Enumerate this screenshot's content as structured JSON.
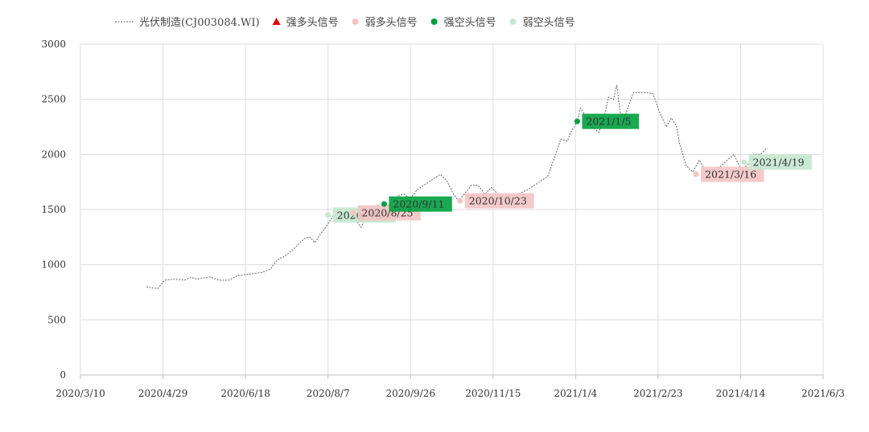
{
  "chart_data": {
    "type": "line",
    "title": "",
    "xlabel": "",
    "ylabel": "",
    "ylim": [
      0,
      3000
    ],
    "yticks": [
      0,
      500,
      1000,
      1500,
      2000,
      2500,
      3000
    ],
    "xlim": [
      "2020-03-10",
      "2021-06-03"
    ],
    "xticks": [
      "2020-03-10",
      "2020-04-29",
      "2020-06-18",
      "2020-08-07",
      "2020-09-26",
      "2020-11-15",
      "2021-01-04",
      "2021-02-23",
      "2021-04-14",
      "2021-06-03"
    ],
    "xtick_labels": [
      "2020/3/10",
      "2020/4/29",
      "2020/6/18",
      "2020/8/7",
      "2020/9/26",
      "2020/11/15",
      "2021/1/4",
      "2021/2/23",
      "2021/4/14",
      "2021/6/3"
    ],
    "grid": true,
    "legend_position": "top",
    "legend": [
      {
        "key": "line",
        "label": "光伏制造(CJ003084.WI)",
        "marker": "dash-line",
        "color": "#666666"
      },
      {
        "key": "strong_long",
        "label": "强多头信号",
        "marker": "triangle",
        "color": "#e60000"
      },
      {
        "key": "weak_long",
        "label": "弱多头信号",
        "marker": "circle",
        "color": "#f4c4c4"
      },
      {
        "key": "strong_short",
        "label": "强空头信号",
        "marker": "circle",
        "color": "#00a03e"
      },
      {
        "key": "weak_short",
        "label": "弱空头信号",
        "marker": "circle",
        "color": "#c4e8cf"
      }
    ],
    "series": [
      {
        "name": "光伏制造(CJ003084.WI)",
        "color": "#666666",
        "style": "dashed",
        "points": [
          [
            "2020-04-19",
            800
          ],
          [
            "2020-04-22",
            790
          ],
          [
            "2020-04-26",
            785
          ],
          [
            "2020-04-30",
            860
          ],
          [
            "2020-05-06",
            870
          ],
          [
            "2020-05-12",
            860
          ],
          [
            "2020-05-16",
            885
          ],
          [
            "2020-05-20",
            870
          ],
          [
            "2020-05-27",
            890
          ],
          [
            "2020-06-02",
            860
          ],
          [
            "2020-06-08",
            860
          ],
          [
            "2020-06-13",
            900
          ],
          [
            "2020-06-18",
            910
          ],
          [
            "2020-06-23",
            920
          ],
          [
            "2020-06-28",
            930
          ],
          [
            "2020-07-03",
            960
          ],
          [
            "2020-07-07",
            1040
          ],
          [
            "2020-07-12",
            1080
          ],
          [
            "2020-07-17",
            1140
          ],
          [
            "2020-07-21",
            1200
          ],
          [
            "2020-07-24",
            1240
          ],
          [
            "2020-07-27",
            1250
          ],
          [
            "2020-07-30",
            1200
          ],
          [
            "2020-08-02",
            1270
          ],
          [
            "2020-08-06",
            1350
          ],
          [
            "2020-08-10",
            1440
          ],
          [
            "2020-08-14",
            1470
          ],
          [
            "2020-08-18",
            1460
          ],
          [
            "2020-08-21",
            1470
          ],
          [
            "2020-08-25",
            1380
          ],
          [
            "2020-08-27",
            1340
          ],
          [
            "2020-08-29",
            1400
          ],
          [
            "2020-09-02",
            1460
          ],
          [
            "2020-09-06",
            1540
          ],
          [
            "2020-09-08",
            1530
          ],
          [
            "2020-09-10",
            1500
          ],
          [
            "2020-09-14",
            1560
          ],
          [
            "2020-09-18",
            1620
          ],
          [
            "2020-09-22",
            1640
          ],
          [
            "2020-09-26",
            1600
          ],
          [
            "2020-09-30",
            1680
          ],
          [
            "2020-10-08",
            1760
          ],
          [
            "2020-10-14",
            1820
          ],
          [
            "2020-10-18",
            1760
          ],
          [
            "2020-10-22",
            1640
          ],
          [
            "2020-10-25",
            1580
          ],
          [
            "2020-10-29",
            1650
          ],
          [
            "2020-11-02",
            1720
          ],
          [
            "2020-11-06",
            1720
          ],
          [
            "2020-11-10",
            1640
          ],
          [
            "2020-11-14",
            1700
          ],
          [
            "2020-11-18",
            1640
          ],
          [
            "2020-11-24",
            1620
          ],
          [
            "2020-11-30",
            1640
          ],
          [
            "2020-12-06",
            1680
          ],
          [
            "2020-12-12",
            1740
          ],
          [
            "2020-12-18",
            1800
          ],
          [
            "2020-12-23",
            2000
          ],
          [
            "2020-12-26",
            2140
          ],
          [
            "2020-12-30",
            2120
          ],
          [
            "2021-01-01",
            2200
          ],
          [
            "2021-01-05",
            2300
          ],
          [
            "2021-01-07",
            2420
          ],
          [
            "2021-01-10",
            2350
          ],
          [
            "2021-01-14",
            2250
          ],
          [
            "2021-01-18",
            2200
          ],
          [
            "2021-01-21",
            2320
          ],
          [
            "2021-01-24",
            2520
          ],
          [
            "2021-01-27",
            2500
          ],
          [
            "2021-01-29",
            2630
          ],
          [
            "2021-01-31",
            2380
          ],
          [
            "2021-02-03",
            2350
          ],
          [
            "2021-02-08",
            2560
          ],
          [
            "2021-02-16",
            2560
          ],
          [
            "2021-02-20",
            2550
          ],
          [
            "2021-02-24",
            2380
          ],
          [
            "2021-02-28",
            2250
          ],
          [
            "2021-03-03",
            2330
          ],
          [
            "2021-03-06",
            2260
          ],
          [
            "2021-03-08",
            2100
          ],
          [
            "2021-03-12",
            1900
          ],
          [
            "2021-03-16",
            1840
          ],
          [
            "2021-03-20",
            1950
          ],
          [
            "2021-03-24",
            1840
          ],
          [
            "2021-03-28",
            1860
          ],
          [
            "2021-04-01",
            1880
          ],
          [
            "2021-04-06",
            1950
          ],
          [
            "2021-04-10",
            2000
          ],
          [
            "2021-04-14",
            1870
          ],
          [
            "2021-04-18",
            1900
          ],
          [
            "2021-04-22",
            2000
          ],
          [
            "2021-04-26",
            2000
          ],
          [
            "2021-04-30",
            2060
          ]
        ]
      }
    ],
    "signals": [
      {
        "type": "weak_short",
        "date": "2020-08-07",
        "value": 1450,
        "label": "2020/7/30"
      },
      {
        "type": "weak_long",
        "date": "2020-08-22",
        "value": 1470,
        "label": "2020/8/25"
      },
      {
        "type": "strong_short",
        "date": "2020-09-10",
        "value": 1550,
        "label": "2020/9/11"
      },
      {
        "type": "weak_long",
        "date": "2020-10-26",
        "value": 1580,
        "label": "2020/10/23"
      },
      {
        "type": "strong_short",
        "date": "2021-01-05",
        "value": 2300,
        "label": "2021/1/5"
      },
      {
        "type": "weak_long",
        "date": "2021-03-18",
        "value": 1820,
        "label": "2021/3/16"
      },
      {
        "type": "weak_short",
        "date": "2021-04-16",
        "value": 1930,
        "label": "2021/4/19"
      }
    ]
  }
}
